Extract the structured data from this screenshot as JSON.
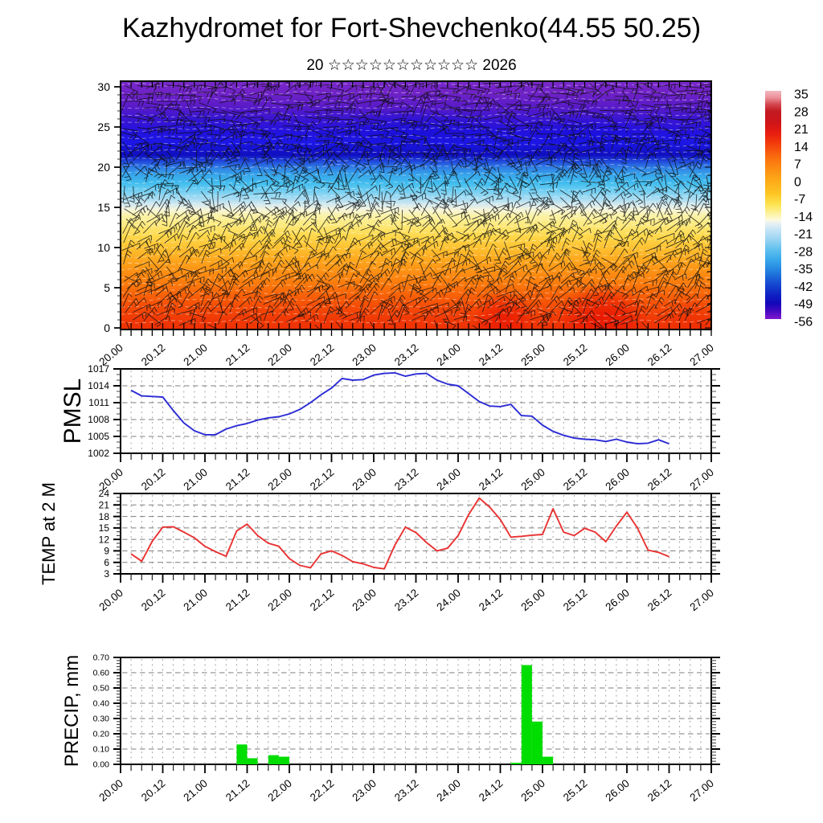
{
  "title": "Kazhydromet for Fort-Shevchenko(44.55 50.25)",
  "subtitle": "20 ☆☆☆☆☆☆☆☆☆☆☆ 2026",
  "x_axis": {
    "start_label": "20.00",
    "end_label": "27.00",
    "tick_labels": [
      "20.00",
      "20.12",
      "21.00",
      "21.12",
      "22.00",
      "22.12",
      "23.00",
      "23.12",
      "24.00",
      "24.12",
      "25.00",
      "25.12",
      "26.00",
      "26.12",
      "27.00"
    ],
    "minor_tick_hours": 3,
    "label_every_hours": 12,
    "total_hours": 168
  },
  "chart_data": [
    {
      "type": "heatmap",
      "name": "temperature-height-cross-section",
      "description": "Filled temperature (°C) time-height cross-section with dense wind-barb overlay and thin white dashed streamlines",
      "ylim": [
        0,
        30
      ],
      "yticks": [
        0,
        5,
        10,
        15,
        20,
        25,
        30
      ],
      "x_start": "20.00",
      "x_end": "27.00",
      "colorbar": {
        "labels": [
          35,
          28,
          21,
          14,
          7,
          0,
          -7,
          -14,
          -21,
          -28,
          -35,
          -42,
          -49,
          -56
        ],
        "stops": [
          {
            "at": 0.0,
            "c": "#f5b8c0"
          },
          {
            "at": 0.03,
            "c": "#eb8f99"
          },
          {
            "at": 0.06,
            "c": "#d4454d"
          },
          {
            "at": 0.09,
            "c": "#c21a22"
          },
          {
            "at": 0.14,
            "c": "#cd1518"
          },
          {
            "at": 0.185,
            "c": "#e81c10"
          },
          {
            "at": 0.23,
            "c": "#f23c0c"
          },
          {
            "at": 0.285,
            "c": "#f9690e"
          },
          {
            "at": 0.34,
            "c": "#fc8c12"
          },
          {
            "at": 0.395,
            "c": "#fdab18"
          },
          {
            "at": 0.45,
            "c": "#fdc524"
          },
          {
            "at": 0.495,
            "c": "#fde24e"
          },
          {
            "at": 0.53,
            "c": "#fdf08e"
          },
          {
            "at": 0.565,
            "c": "#fdfadc"
          },
          {
            "at": 0.58,
            "c": "#e8f2f4"
          },
          {
            "at": 0.61,
            "c": "#c4e4f6"
          },
          {
            "at": 0.65,
            "c": "#9ad4f2"
          },
          {
            "at": 0.695,
            "c": "#60c0ee"
          },
          {
            "at": 0.74,
            "c": "#38a8ea"
          },
          {
            "at": 0.79,
            "c": "#2280e0"
          },
          {
            "at": 0.84,
            "c": "#164ed2"
          },
          {
            "at": 0.89,
            "c": "#0e24c4"
          },
          {
            "at": 0.93,
            "c": "#1208ba"
          },
          {
            "at": 0.965,
            "c": "#4408c0"
          },
          {
            "at": 1.0,
            "c": "#8018ce"
          }
        ]
      },
      "gradient_stops": [
        {
          "v": 30.7,
          "c": "#7a28cc"
        },
        {
          "v": 29.2,
          "c": "#6f22c6"
        },
        {
          "v": 27.6,
          "c": "#5a1bc8"
        },
        {
          "v": 26.0,
          "c": "#3a15d2"
        },
        {
          "v": 24.4,
          "c": "#2312de"
        },
        {
          "v": 23.0,
          "c": "#1c17e6"
        },
        {
          "v": 22.2,
          "c": "#1512cd"
        },
        {
          "v": 21.5,
          "c": "#100fc0"
        },
        {
          "v": 20.8,
          "c": "#1f44da"
        },
        {
          "v": 20.0,
          "c": "#2f7ce4"
        },
        {
          "v": 19.0,
          "c": "#37a6ea"
        },
        {
          "v": 18.0,
          "c": "#41bdee"
        },
        {
          "v": 17.0,
          "c": "#74cff2"
        },
        {
          "v": 16.0,
          "c": "#abddf2"
        },
        {
          "v": 15.3,
          "c": "#d7eaee"
        },
        {
          "v": 14.7,
          "c": "#f5f4d8"
        },
        {
          "v": 13.9,
          "c": "#fbf2a4"
        },
        {
          "v": 12.7,
          "c": "#fde878"
        },
        {
          "v": 11.4,
          "c": "#fed84a"
        },
        {
          "v": 10.0,
          "c": "#fdc232"
        },
        {
          "v": 8.5,
          "c": "#fda81e"
        },
        {
          "v": 7.0,
          "c": "#fc9014"
        },
        {
          "v": 5.5,
          "c": "#fa7a0c"
        },
        {
          "v": 4.0,
          "c": "#f76008"
        },
        {
          "v": 2.5,
          "c": "#f44a06"
        },
        {
          "v": 1.0,
          "c": "#f03806"
        },
        {
          "v": -0.2,
          "c": "#ee3004"
        }
      ],
      "blobs": [
        {
          "t": "24.13",
          "v": 1.2,
          "rxh": 9,
          "ry": 3.5,
          "c": "#e81200",
          "o": 0.7
        },
        {
          "t": "25.17",
          "v": 1.4,
          "rxh": 13,
          "ry": 4.2,
          "c": "#e60e00",
          "o": 0.75
        },
        {
          "t": "21.15",
          "v": 0.8,
          "rxh": 7,
          "ry": 2.4,
          "c": "#f03c00",
          "o": 0.5
        },
        {
          "t": "26.18",
          "v": 1.0,
          "rxh": 6,
          "ry": 3.0,
          "c": "#ee2a00",
          "o": 0.45
        },
        {
          "t": "23.12",
          "v": 24.5,
          "rxh": 26,
          "ry": 2.6,
          "c": "#140ed6",
          "o": 0.5
        },
        {
          "t": "25.12",
          "v": 24.0,
          "rxh": 20,
          "ry": 2.2,
          "c": "#120cda",
          "o": 0.45
        },
        {
          "t": "21.00",
          "v": 25.0,
          "rxh": 10,
          "ry": 2.0,
          "c": "#1812d2",
          "o": 0.4
        }
      ],
      "overlays": [
        "wind-barbs",
        "white-dashed-streamlines"
      ]
    },
    {
      "type": "line",
      "label": "PMSL",
      "color": "#2b2bd5",
      "ylim": [
        1002,
        1017
      ],
      "yticks": [
        1002,
        1005,
        1008,
        1011,
        1014,
        1017
      ],
      "gridlines": [
        1005,
        1008,
        1011,
        1014
      ],
      "minor_step": 1,
      "times": [
        "20.03",
        "20.06",
        "20.09",
        "20.12",
        "20.15",
        "20.18",
        "20.21",
        "21.00",
        "21.03",
        "21.06",
        "21.09",
        "21.12",
        "21.15",
        "21.18",
        "21.21",
        "22.00",
        "22.03",
        "22.06",
        "22.09",
        "22.12",
        "22.15",
        "22.18",
        "22.21",
        "23.00",
        "23.03",
        "23.06",
        "23.09",
        "23.12",
        "23.15",
        "23.18",
        "23.21",
        "24.00",
        "24.03",
        "24.06",
        "24.09",
        "24.12",
        "24.15",
        "24.18",
        "24.21",
        "25.00",
        "25.03",
        "25.06",
        "25.09",
        "25.12",
        "25.15",
        "25.18",
        "25.21",
        "26.00",
        "26.03",
        "26.06",
        "26.09",
        "26.12"
      ],
      "values": [
        1013.2,
        1012.2,
        1012.1,
        1012.0,
        1009.6,
        1007.4,
        1006.0,
        1005.3,
        1005.3,
        1006.3,
        1006.9,
        1007.3,
        1007.9,
        1008.3,
        1008.5,
        1009.0,
        1009.8,
        1011.0,
        1012.4,
        1013.6,
        1015.3,
        1015.0,
        1015.1,
        1015.9,
        1016.2,
        1016.3,
        1015.7,
        1016.1,
        1016.2,
        1015.0,
        1014.3,
        1014.0,
        1012.6,
        1011.2,
        1010.4,
        1010.3,
        1010.7,
        1008.7,
        1008.6,
        1007.0,
        1005.9,
        1005.2,
        1004.7,
        1004.5,
        1004.4,
        1004.1,
        1004.5,
        1004.0,
        1003.7,
        1003.8,
        1004.4,
        1003.7
      ]
    },
    {
      "type": "line",
      "label": "TEMP at 2 M",
      "color": "#ea3232",
      "ylim": [
        3,
        24
      ],
      "yticks": [
        3,
        6,
        9,
        12,
        15,
        18,
        21,
        24
      ],
      "gridlines": [
        6,
        9,
        12,
        15,
        18,
        21
      ],
      "minor_step": 1,
      "times": [
        "20.03",
        "20.06",
        "20.09",
        "20.12",
        "20.15",
        "20.18",
        "20.21",
        "21.00",
        "21.03",
        "21.06",
        "21.09",
        "21.12",
        "21.15",
        "21.18",
        "21.21",
        "22.00",
        "22.03",
        "22.06",
        "22.09",
        "22.12",
        "22.15",
        "22.18",
        "22.21",
        "23.00",
        "23.03",
        "23.06",
        "23.09",
        "23.12",
        "23.15",
        "23.18",
        "23.21",
        "24.00",
        "24.03",
        "24.06",
        "24.09",
        "24.12",
        "24.15",
        "24.18",
        "24.21",
        "25.00",
        "25.03",
        "25.06",
        "25.09",
        "25.12",
        "25.15",
        "25.18",
        "25.21",
        "26.00",
        "26.03",
        "26.06",
        "26.09",
        "26.12"
      ],
      "values": [
        8.2,
        6.3,
        11.5,
        15.2,
        15.3,
        13.9,
        12.4,
        10.2,
        8.8,
        7.6,
        14.2,
        16.0,
        13.0,
        11.0,
        10.2,
        7.0,
        5.2,
        4.6,
        8.2,
        9.0,
        7.8,
        6.2,
        5.6,
        4.7,
        4.3,
        10.5,
        15.2,
        13.8,
        11.2,
        9.0,
        9.7,
        13.0,
        18.5,
        22.8,
        20.4,
        17.2,
        12.6,
        12.8,
        13.1,
        13.3,
        20.0,
        13.9,
        13.0,
        14.9,
        13.9,
        11.4,
        15.5,
        19.1,
        15.0,
        9.2,
        8.6,
        7.5
      ]
    },
    {
      "type": "bar",
      "label": "PRECIP, mm",
      "color": "#00dd00",
      "ylim": [
        0,
        0.7
      ],
      "ytick_labels": [
        "0.00",
        "0.10",
        "0.20",
        "0.30",
        "0.40",
        "0.50",
        "0.60",
        "0.70"
      ],
      "gridlines": [
        0.1,
        0.2,
        0.3,
        0.4,
        0.5,
        0.6
      ],
      "minor_step": 0.02,
      "bin_hours": 3,
      "bars": [
        {
          "t": "21.09",
          "v": 0.13
        },
        {
          "t": "21.12",
          "v": 0.04
        },
        {
          "t": "21.18",
          "v": 0.06
        },
        {
          "t": "21.21",
          "v": 0.05
        },
        {
          "t": "24.15",
          "v": 0.01
        },
        {
          "t": "24.18",
          "v": 0.65
        },
        {
          "t": "24.21",
          "v": 0.28
        },
        {
          "t": "25.00",
          "v": 0.05
        }
      ]
    }
  ],
  "colors": {
    "frame": "#000000",
    "grid": "#909090",
    "pmsl_line": "#2b2bd5",
    "temp_line": "#ea3232",
    "precip_bar": "#00dd00",
    "barbs": "#0d0d0d",
    "streamlines": "#ffffff"
  }
}
